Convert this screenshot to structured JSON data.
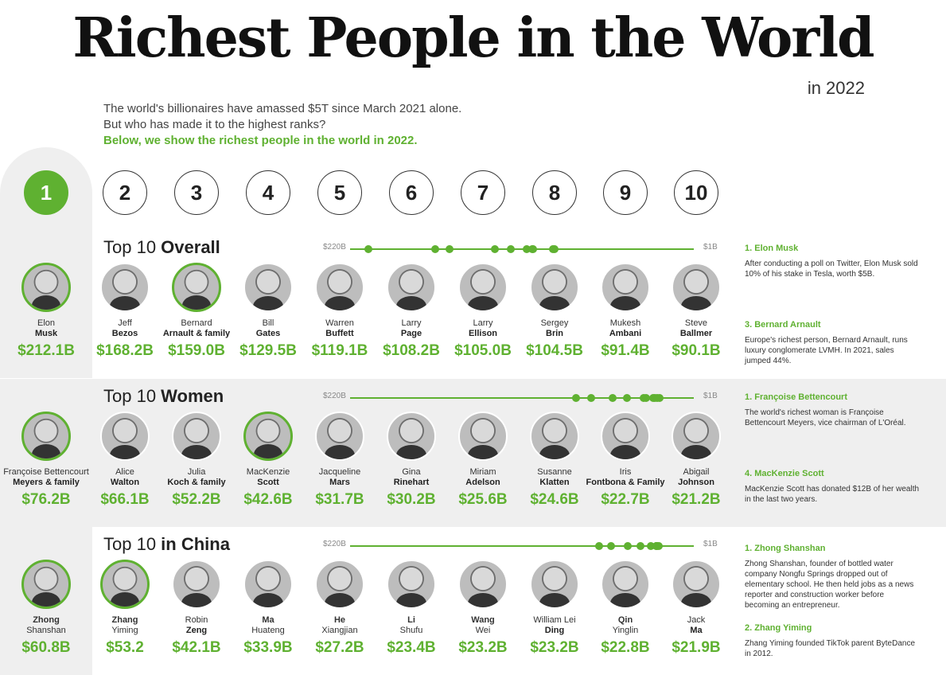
{
  "header": {
    "title": "Richest People in the World",
    "year": "in 2022",
    "intro_line1": "The world's billionaires have amassed $5T since March 2021 alone.",
    "intro_line2": "But who has made it to the highest ranks?",
    "intro_line3": "Below, we show the richest people in the world in 2022."
  },
  "ranks": [
    "1",
    "2",
    "3",
    "4",
    "5",
    "6",
    "7",
    "8",
    "9",
    "10"
  ],
  "scale": {
    "high": "$220B",
    "low": "$1B"
  },
  "accent_color": "#5fb131",
  "sections": [
    {
      "title_plain": "Top 10 ",
      "title_bold": "Overall",
      "people": [
        {
          "first": "Elon",
          "last": "Musk",
          "worth": "$212.1B"
        },
        {
          "first": "Jeff",
          "last": "Bezos",
          "worth": "$168.2B"
        },
        {
          "first": "Bernard",
          "last": "Arnault & family",
          "worth": "$159.0B"
        },
        {
          "first": "Bill",
          "last": "Gates",
          "worth": "$129.5B"
        },
        {
          "first": "Warren",
          "last": "Buffett",
          "worth": "$119.1B"
        },
        {
          "first": "Larry",
          "last": "Page",
          "worth": "$108.2B"
        },
        {
          "first": "Larry",
          "last": "Ellison",
          "worth": "$105.0B"
        },
        {
          "first": "Sergey",
          "last": "Brin",
          "worth": "$104.5B"
        },
        {
          "first": "Mukesh",
          "last": "Ambani",
          "worth": "$91.4B"
        },
        {
          "first": "Steve",
          "last": "Ballmer",
          "worth": "$90.1B"
        }
      ],
      "notes": [
        {
          "title": "1. Elon Musk",
          "text": "After conducting a poll on Twitter, Elon Musk sold 10% of his stake in Tesla, worth $5B."
        },
        {
          "title": "3. Bernard Arnault",
          "text": "Europe's richest person, Bernard Arnault, runs luxury conglomerate LVMH. In 2021, sales jumped 44%."
        }
      ]
    },
    {
      "title_plain": "Top 10 ",
      "title_bold": "Women",
      "people": [
        {
          "first": "Françoise Bettencourt",
          "last": "Meyers & family",
          "worth": "$76.2B"
        },
        {
          "first": "Alice",
          "last": "Walton",
          "worth": "$66.1B"
        },
        {
          "first": "Julia",
          "last": "Koch & family",
          "worth": "$52.2B"
        },
        {
          "first": "MacKenzie",
          "last": "Scott",
          "worth": "$42.6B"
        },
        {
          "first": "Jacqueline",
          "last": "Mars",
          "worth": "$31.7B"
        },
        {
          "first": "Gina",
          "last": "Rinehart",
          "worth": "$30.2B"
        },
        {
          "first": "Miriam",
          "last": "Adelson",
          "worth": "$25.6B"
        },
        {
          "first": "Susanne",
          "last": "Klatten",
          "worth": "$24.6B"
        },
        {
          "first": "Iris",
          "last": "Fontbona & Family",
          "worth": "$22.7B"
        },
        {
          "first": "Abigail",
          "last": "Johnson",
          "worth": "$21.2B"
        }
      ],
      "notes": [
        {
          "title": "1. Françoise Bettencourt",
          "text": "The world's richest woman is Françoise Bettencourt Meyers, vice chairman of L'Oréal."
        },
        {
          "title": "4. MacKenzie Scott",
          "text": "MacKenzie Scott has donated $12B of her wealth in the last two years."
        }
      ]
    },
    {
      "title_plain": "Top 10 ",
      "title_bold": "in China",
      "people": [
        {
          "first": "Zhong",
          "last": "Shanshan",
          "worth": "$60.8B",
          "bold_first": true
        },
        {
          "first": "Zhang",
          "last": "Yiming",
          "worth": "$53.2",
          "bold_first": true
        },
        {
          "first": "Robin",
          "last": "Zeng",
          "worth": "$42.1B"
        },
        {
          "first": "Ma",
          "last": "Huateng",
          "worth": "$33.9B",
          "bold_first": true
        },
        {
          "first": "He",
          "last": "Xiangjian",
          "worth": "$27.2B",
          "bold_first": true
        },
        {
          "first": "Li",
          "last": "Shufu",
          "worth": "$23.4B",
          "bold_first": true
        },
        {
          "first": "Wang",
          "last": "Wei",
          "worth": "$23.2B",
          "bold_first": true
        },
        {
          "first": "William Lei",
          "last": "Ding",
          "worth": "$23.2B"
        },
        {
          "first": "Qin",
          "last": "Yinglin",
          "worth": "$22.8B",
          "bold_first": true
        },
        {
          "first": "Jack",
          "last": "Ma",
          "worth": "$21.9B"
        }
      ],
      "notes": [
        {
          "title": "1. Zhong Shanshan",
          "text": "Zhong Shanshan, founder of bottled water company Nongfu Springs dropped out of elementary school. He then held jobs as a news reporter and construction worker before becoming an entrepreneur."
        },
        {
          "title": "2. Zhang Yiming",
          "text": "Zhang Yiming founded TikTok parent ByteDance in 2012."
        }
      ]
    }
  ],
  "chart_data": {
    "type": "scatter",
    "scale_max": 220,
    "scale_min": 1,
    "series": [
      {
        "name": "Overall",
        "values": [
          212.1,
          168.2,
          159.0,
          129.5,
          119.1,
          108.2,
          105.0,
          104.5,
          91.4,
          90.1
        ]
      },
      {
        "name": "Women",
        "values": [
          76.2,
          66.1,
          52.2,
          42.6,
          31.7,
          30.2,
          25.6,
          24.6,
          22.7,
          21.2
        ]
      },
      {
        "name": "in China",
        "values": [
          60.8,
          53.2,
          42.1,
          33.9,
          27.2,
          23.4,
          23.2,
          23.2,
          22.8,
          21.9
        ]
      }
    ]
  }
}
